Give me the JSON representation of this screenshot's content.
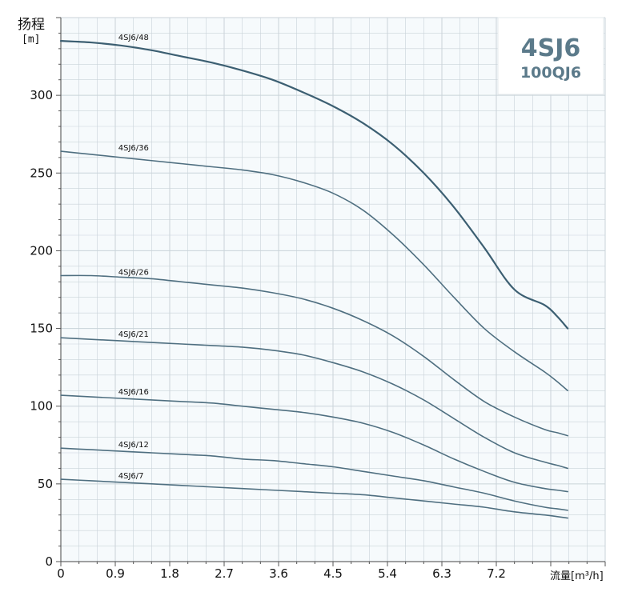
{
  "model_box": {
    "title": "4SJ6",
    "subtitle": "100QJ6"
  },
  "chart_data": {
    "type": "line",
    "title": "",
    "ylabel": "扬程",
    "yunit": "[m]",
    "xlabel": "流量[m³/h]",
    "xlim": [
      0,
      9
    ],
    "ylim": [
      0,
      350
    ],
    "xticks": [
      0,
      0.9,
      1.8,
      2.7,
      3.6,
      4.5,
      5.4,
      6.3,
      7.2
    ],
    "xtick_labels": [
      "0",
      "0.9",
      "1.8",
      "2.7",
      "3.6",
      "4.5",
      "5.4",
      "6.3",
      "7.2"
    ],
    "yticks": [
      0,
      50,
      100,
      150,
      200,
      250,
      300
    ],
    "ytick_labels": [
      "0",
      "50",
      "100",
      "150",
      "200",
      "250",
      "300"
    ],
    "grid": true,
    "colors": {
      "plot_bg": "#f6fafc",
      "grid": "#c9d3d9",
      "curve": "#4f6f80",
      "curve_top": "#3c5f72"
    },
    "series": [
      {
        "name": "4SJ6/48",
        "x": [
          0,
          0.5,
          1.0,
          1.5,
          2.0,
          2.5,
          3.0,
          3.5,
          4.0,
          4.5,
          5.0,
          5.5,
          6.0,
          6.5,
          7.0,
          7.5,
          8.0,
          8.2,
          8.38
        ],
        "y": [
          335,
          334,
          332,
          329,
          325,
          321,
          316,
          310,
          302,
          293,
          282,
          268,
          250,
          228,
          202,
          175,
          165,
          158,
          150
        ]
      },
      {
        "name": "4SJ6/36",
        "x": [
          0,
          0.5,
          1.0,
          1.5,
          2.0,
          2.5,
          3.0,
          3.5,
          4.0,
          4.5,
          5.0,
          5.5,
          6.0,
          6.5,
          7.0,
          7.5,
          8.0,
          8.2,
          8.38
        ],
        "y": [
          264,
          262,
          260,
          258,
          256,
          254,
          252,
          249,
          244,
          237,
          226,
          210,
          191,
          170,
          150,
          135,
          122,
          116,
          110
        ]
      },
      {
        "name": "4SJ6/26",
        "x": [
          0,
          0.5,
          1.0,
          1.5,
          2.0,
          2.5,
          3.0,
          3.5,
          4.0,
          4.5,
          5.0,
          5.5,
          6.0,
          6.5,
          7.0,
          7.5,
          8.0,
          8.2,
          8.38
        ],
        "y": [
          184,
          184,
          183,
          182,
          180,
          178,
          176,
          173,
          169,
          163,
          155,
          145,
          132,
          117,
          103,
          93,
          85,
          83,
          81
        ]
      },
      {
        "name": "4SJ6/21",
        "x": [
          0,
          0.5,
          1.0,
          1.5,
          2.0,
          2.5,
          3.0,
          3.5,
          4.0,
          4.5,
          5.0,
          5.5,
          6.0,
          6.5,
          7.0,
          7.5,
          8.0,
          8.2,
          8.38
        ],
        "y": [
          144,
          143,
          142,
          141,
          140,
          139,
          138,
          136,
          133,
          128,
          122,
          114,
          104,
          92,
          80,
          70,
          64,
          62,
          60
        ]
      },
      {
        "name": "4SJ6/16",
        "x": [
          0,
          0.5,
          1.0,
          1.5,
          2.0,
          2.5,
          3.0,
          3.5,
          4.0,
          4.5,
          5.0,
          5.5,
          6.0,
          6.5,
          7.0,
          7.5,
          8.0,
          8.2,
          8.38
        ],
        "y": [
          107,
          106,
          105,
          104,
          103,
          102,
          100,
          98,
          96,
          93,
          89,
          83,
          75,
          66,
          58,
          51,
          47,
          46,
          45
        ]
      },
      {
        "name": "4SJ6/12",
        "x": [
          0,
          0.5,
          1.0,
          1.5,
          2.0,
          2.5,
          3.0,
          3.5,
          4.0,
          4.5,
          5.0,
          5.5,
          6.0,
          6.5,
          7.0,
          7.5,
          8.0,
          8.2,
          8.38
        ],
        "y": [
          73,
          72,
          71,
          70,
          69,
          68,
          66,
          65,
          63,
          61,
          58,
          55,
          52,
          48,
          44,
          39,
          35,
          34,
          33
        ]
      },
      {
        "name": "4SJ6/7",
        "x": [
          0,
          0.5,
          1.0,
          1.5,
          2.0,
          2.5,
          3.0,
          3.5,
          4.0,
          4.5,
          5.0,
          5.5,
          6.0,
          6.5,
          7.0,
          7.5,
          8.0,
          8.2,
          8.38
        ],
        "y": [
          53,
          52,
          51,
          50,
          49,
          48,
          47,
          46,
          45,
          44,
          43,
          41,
          39,
          37,
          35,
          32,
          30,
          29,
          28
        ]
      }
    ]
  }
}
